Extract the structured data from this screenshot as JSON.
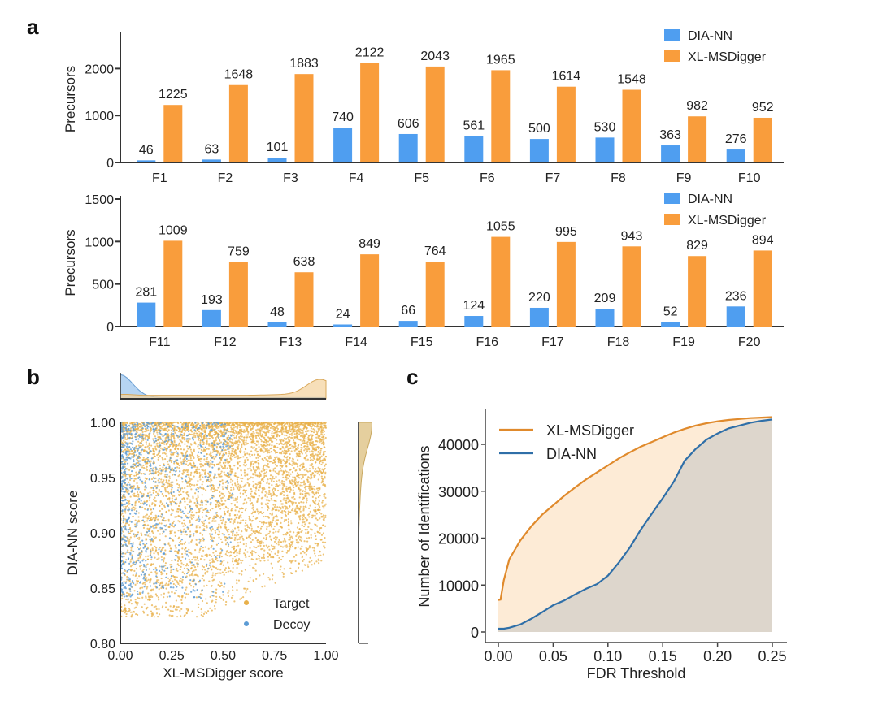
{
  "panels": {
    "a": "a",
    "b": "b",
    "c": "c"
  },
  "colors": {
    "dia_nn_bar": "#4f9ef0",
    "xl_msdigger_bar": "#f99d3c",
    "target": "#e8b04a",
    "decoy": "#5b9bd5",
    "xl_line": "#e08a2c",
    "dia_line": "#2f6fa8",
    "xl_fill": "#fdebd6",
    "dia_fill": "#ddd6cc"
  },
  "chart_data": [
    {
      "id": "a-top",
      "type": "bar",
      "title": "",
      "xlabel": "",
      "ylabel": "Precursors",
      "ylim": [
        0,
        2700
      ],
      "yticks": [
        0,
        1000,
        2000
      ],
      "legend": "top-right",
      "categories": [
        "F1",
        "F2",
        "F3",
        "F4",
        "F5",
        "F6",
        "F7",
        "F8",
        "F9",
        "F10"
      ],
      "series": [
        {
          "name": "DIA-NN",
          "values": [
            46,
            63,
            101,
            740,
            606,
            561,
            500,
            530,
            363,
            276
          ]
        },
        {
          "name": "XL-MSDigger",
          "values": [
            1225,
            1648,
            1883,
            2122,
            2043,
            1965,
            1614,
            1548,
            982,
            952
          ]
        }
      ]
    },
    {
      "id": "a-bottom",
      "type": "bar",
      "title": "",
      "xlabel": "",
      "ylabel": "Precursors",
      "ylim": [
        0,
        1500
      ],
      "yticks": [
        0,
        500,
        1000,
        1500
      ],
      "legend": "top-right",
      "categories": [
        "F11",
        "F12",
        "F13",
        "F14",
        "F15",
        "F16",
        "F17",
        "F18",
        "F19",
        "F20"
      ],
      "series": [
        {
          "name": "DIA-NN",
          "values": [
            281,
            193,
            48,
            24,
            66,
            124,
            220,
            209,
            52,
            236
          ]
        },
        {
          "name": "XL-MSDigger",
          "values": [
            1009,
            759,
            638,
            849,
            764,
            1055,
            995,
            943,
            829,
            894
          ]
        }
      ]
    },
    {
      "id": "b",
      "type": "scatter",
      "title": "",
      "xlabel": "XL-MSDigger score",
      "ylabel": "DIA-NN score",
      "xlim": [
        0,
        1
      ],
      "ylim": [
        0.8,
        1.0
      ],
      "xticks": [
        "0.00",
        "0.25",
        "0.50",
        "0.75",
        "1.00"
      ],
      "yticks": [
        "0.80",
        "0.85",
        "0.90",
        "0.95",
        "1.00"
      ],
      "legend": "bottom-right",
      "series": [
        {
          "name": "Target",
          "description": "dense cloud; DIA-NN score 0.825-1.0; sparse toward high XL score / low DIA score"
        },
        {
          "name": "Decoy",
          "description": "concentrated at XL-MSDigger score 0-0.2, DIA-NN score 0.84-1.0"
        }
      ],
      "marginals": {
        "top": "density of XL-MSDigger score: Decoy peaks near 0; Target peaks near 0.95-1.0",
        "right": "density of DIA-NN score: both peak near 1.0"
      }
    },
    {
      "id": "c",
      "type": "area",
      "title": "",
      "xlabel": "FDR Threshold",
      "ylabel": "Number of Identifications",
      "xlim": [
        0,
        0.25
      ],
      "ylim": [
        0,
        46000
      ],
      "xticks": [
        "0.00",
        "0.05",
        "0.10",
        "0.15",
        "0.20",
        "0.25"
      ],
      "yticks": [
        "0",
        "10000",
        "20000",
        "30000",
        "40000"
      ],
      "legend": "top-left",
      "x": [
        0.0,
        0.002,
        0.005,
        0.01,
        0.02,
        0.03,
        0.04,
        0.05,
        0.06,
        0.07,
        0.08,
        0.09,
        0.1,
        0.11,
        0.12,
        0.13,
        0.14,
        0.15,
        0.16,
        0.17,
        0.18,
        0.19,
        0.2,
        0.21,
        0.22,
        0.23,
        0.24,
        0.25
      ],
      "series": [
        {
          "name": "XL-MSDigger",
          "values": [
            6800,
            6900,
            11000,
            15500,
            19500,
            22500,
            25000,
            27000,
            29000,
            30800,
            32500,
            34000,
            35500,
            37000,
            38300,
            39500,
            40500,
            41500,
            42500,
            43300,
            44000,
            44500,
            44900,
            45200,
            45400,
            45600,
            45700,
            45800
          ]
        },
        {
          "name": "DIA-NN",
          "values": [
            700,
            700,
            700,
            900,
            1600,
            2800,
            4200,
            5700,
            6700,
            8000,
            9200,
            10200,
            12000,
            14800,
            18000,
            21800,
            25200,
            28500,
            32000,
            36500,
            39000,
            41000,
            42300,
            43400,
            44000,
            44600,
            45000,
            45300
          ]
        }
      ]
    }
  ]
}
